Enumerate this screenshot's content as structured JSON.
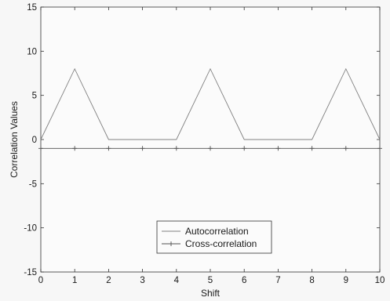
{
  "chart_data": {
    "type": "line",
    "title": "",
    "xlabel": "Shift",
    "ylabel": "Correlation Values",
    "xlim": [
      0,
      10
    ],
    "ylim": [
      -15,
      15
    ],
    "xticks": [
      0,
      1,
      2,
      3,
      4,
      5,
      6,
      7,
      8,
      9,
      10
    ],
    "yticks": [
      -15,
      -10,
      -5,
      0,
      5,
      10,
      15
    ],
    "grid": false,
    "legend_position": "lower-center",
    "series": [
      {
        "name": "Autocorrelation",
        "x": [
          0,
          1,
          2,
          3,
          4,
          5,
          6,
          7,
          8,
          9,
          10
        ],
        "y": [
          0,
          8,
          0,
          0,
          0,
          8,
          0,
          0,
          0,
          8,
          0
        ],
        "color": "#808080",
        "marker": "none"
      },
      {
        "name": "Cross-correlation",
        "x": [
          0,
          1,
          2,
          3,
          4,
          5,
          6,
          7,
          8,
          9,
          10
        ],
        "y": [
          -1,
          -1,
          -1,
          -1,
          -1,
          -1,
          -1,
          -1,
          -1,
          -1,
          -1
        ],
        "color": "#505050",
        "marker": "plus"
      }
    ]
  }
}
